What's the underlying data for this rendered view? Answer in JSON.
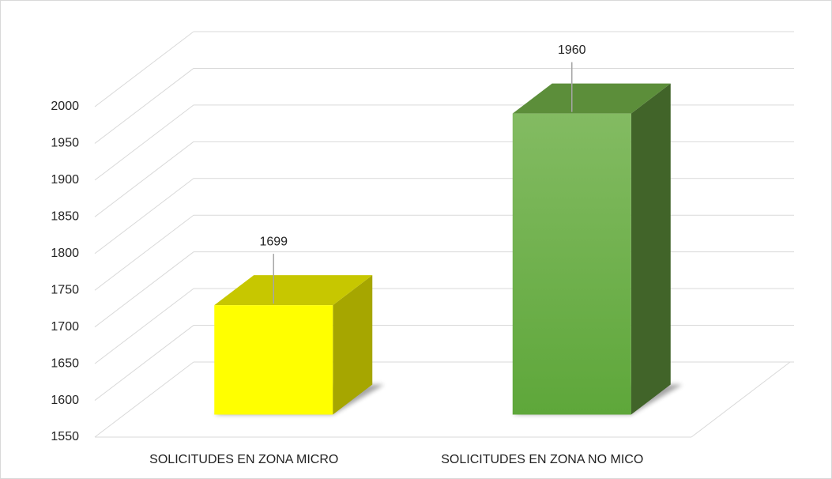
{
  "chart_data": {
    "type": "bar3d",
    "categories": [
      "SOLICITUDES EN ZONA MICRO",
      "SOLICITUDES EN ZONA NO MICO"
    ],
    "values": [
      1699,
      1960
    ],
    "colors": [
      "#ffff00",
      "#70ad47"
    ],
    "ylim": [
      1550,
      2000
    ],
    "yticks": [
      1550,
      1600,
      1650,
      1700,
      1750,
      1800,
      1850,
      1900,
      1950,
      2000
    ],
    "grid": true
  }
}
